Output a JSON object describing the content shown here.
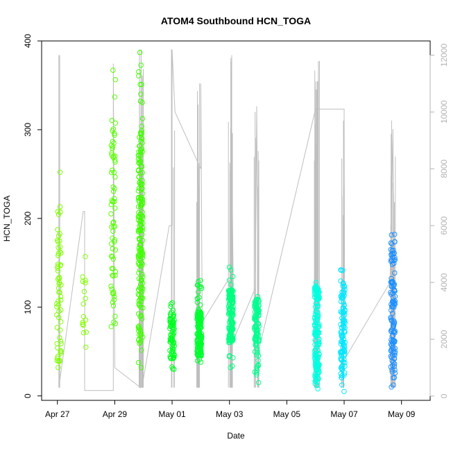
{
  "chart_data": {
    "type": "scatter",
    "title": "ATOM4 Southbound HCN_TOGA",
    "xlabel": "Date",
    "ylabel": "HCN_TOGA",
    "x_tick_labels": [
      "Apr 27",
      "Apr 29",
      "May 01",
      "May 03",
      "May 05",
      "May 07",
      "May 09"
    ],
    "x_ticks_day": [
      0,
      2,
      4,
      6,
      8,
      10,
      12
    ],
    "xlim_day": [
      -0.55,
      13.0
    ],
    "ylim": [
      -5,
      400
    ],
    "y_ticks": [
      0,
      100,
      200,
      300,
      400
    ],
    "y2lim": [
      -150,
      12500
    ],
    "y2_ticks": [
      0,
      2000,
      4000,
      6000,
      8000,
      10000,
      12000
    ],
    "grid": false,
    "point_style": "open-circle",
    "colors": {
      "line": "#bebebe",
      "right_axis": "#b3b3b3",
      "axes": "#000000"
    },
    "clusters": [
      {
        "day": 0.05,
        "n": 60,
        "ymin": 32,
        "ymax": 252,
        "core": [
          35,
          190
        ],
        "color": "#80ff00"
      },
      {
        "day": 0.95,
        "n": 16,
        "ymin": 55,
        "ymax": 157,
        "core": [
          70,
          140
        ],
        "color": "#80ff00"
      },
      {
        "day": 1.95,
        "n": 70,
        "ymin": 78,
        "ymax": 367,
        "core": [
          85,
          310
        ],
        "color": "#55ff00"
      },
      {
        "day": 2.9,
        "n": 190,
        "ymin": 32,
        "ymax": 387,
        "core": [
          60,
          300
        ],
        "color": "#40ff00"
      },
      {
        "day": 4.0,
        "n": 80,
        "ymin": 30,
        "ymax": 105,
        "core": [
          42,
          95
        ],
        "color": "#00ff20"
      },
      {
        "day": 4.95,
        "n": 180,
        "ymin": 38,
        "ymax": 130,
        "core": [
          45,
          95
        ],
        "color": "#00ff30"
      },
      {
        "day": 6.05,
        "n": 140,
        "ymin": 32,
        "ymax": 145,
        "core": [
          60,
          120
        ],
        "color": "#00ff80"
      },
      {
        "day": 6.95,
        "n": 100,
        "ymin": 15,
        "ymax": 112,
        "core": [
          45,
          110
        ],
        "color": "#00ff90"
      },
      {
        "day": 9.05,
        "n": 160,
        "ymin": 8,
        "ymax": 128,
        "core": [
          15,
          125
        ],
        "color": "#00ffe0"
      },
      {
        "day": 9.95,
        "n": 110,
        "ymin": 5,
        "ymax": 142,
        "core": [
          20,
          130
        ],
        "color": "#00e8ff"
      },
      {
        "day": 11.7,
        "n": 120,
        "ymin": 10,
        "ymax": 182,
        "core": [
          25,
          175
        ],
        "color": "#1e90ff"
      }
    ],
    "altitude_line": {
      "right_axis_units": true,
      "path": [
        [
          0.05,
          12000
        ],
        [
          0.05,
          300
        ],
        [
          0.9,
          6500
        ],
        [
          0.95,
          6500
        ],
        [
          0.95,
          200
        ],
        [
          1.95,
          200
        ],
        [
          1.95,
          11700
        ],
        [
          2.0,
          1000
        ],
        [
          2.9,
          300
        ],
        [
          2.92,
          12200
        ],
        [
          2.95,
          300
        ],
        [
          3.9,
          6000
        ],
        [
          4.0,
          6000
        ],
        [
          4.0,
          12200
        ],
        [
          4.1,
          10000
        ],
        [
          5.0,
          8000
        ],
        [
          5.0,
          11000
        ],
        [
          5.05,
          2600
        ],
        [
          5.9,
          4000
        ],
        [
          6.05,
          4100
        ],
        [
          6.05,
          11900
        ],
        [
          6.15,
          2000
        ],
        [
          6.9,
          3800
        ],
        [
          6.95,
          10200
        ],
        [
          7.0,
          1500
        ],
        [
          9.0,
          10100
        ],
        [
          10.0,
          10100
        ],
        [
          10.0,
          9500
        ],
        [
          10.02,
          2500
        ],
        [
          9.9,
          1100
        ],
        [
          11.6,
          4000
        ],
        [
          11.7,
          9400
        ],
        [
          11.75,
          1000
        ]
      ],
      "spikes": [
        {
          "day": 0.05,
          "lo": 300,
          "hi": 12000,
          "n": 3
        },
        {
          "day": 2.92,
          "lo": 300,
          "hi": 12200,
          "n": 14
        },
        {
          "day": 4.0,
          "lo": 300,
          "hi": 12200,
          "n": 4
        },
        {
          "day": 4.9,
          "lo": 300,
          "hi": 11000,
          "n": 10
        },
        {
          "day": 6.05,
          "lo": 300,
          "hi": 12000,
          "n": 10
        },
        {
          "day": 6.95,
          "lo": 300,
          "hi": 10000,
          "n": 6
        },
        {
          "day": 9.05,
          "lo": 300,
          "hi": 11800,
          "n": 16
        },
        {
          "day": 9.95,
          "lo": 300,
          "hi": 9700,
          "n": 8
        },
        {
          "day": 11.7,
          "lo": 300,
          "hi": 9700,
          "n": 10
        }
      ]
    }
  }
}
